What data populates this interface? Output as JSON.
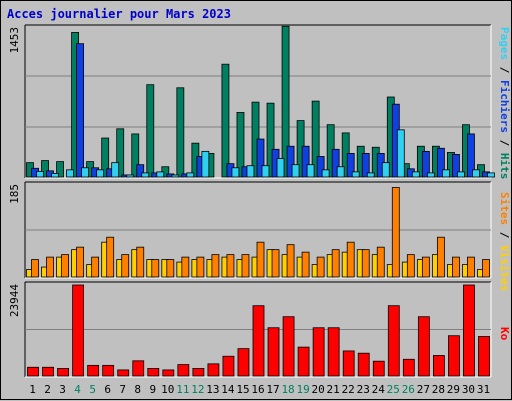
{
  "chart_data": [
    {
      "type": "bar",
      "title": "Acces journalier pour Mars 2023",
      "panel": "top",
      "categories": [
        "1",
        "2",
        "3",
        "4",
        "5",
        "6",
        "7",
        "8",
        "9",
        "10",
        "11",
        "12",
        "13",
        "14",
        "15",
        "16",
        "17",
        "18",
        "19",
        "20",
        "21",
        "22",
        "23",
        "24",
        "25",
        "26",
        "27",
        "28",
        "29",
        "30",
        "31"
      ],
      "ylabel_tick": "1453",
      "ymax": 1453,
      "series": [
        {
          "name": "Hits",
          "color": "#008060",
          "values": [
            140,
            160,
            150,
            1410,
            150,
            380,
            470,
            420,
            900,
            100,
            870,
            330,
            230,
            1100,
            630,
            730,
            720,
            1470,
            550,
            740,
            510,
            430,
            300,
            290,
            780,
            130,
            300,
            300,
            240,
            510,
            120
          ]
        },
        {
          "name": "Fichiers",
          "color": "#1040e0",
          "values": [
            85,
            60,
            0,
            1300,
            90,
            80,
            20,
            120,
            40,
            30,
            30,
            200,
            0,
            130,
            100,
            370,
            270,
            300,
            300,
            200,
            270,
            230,
            230,
            230,
            710,
            80,
            250,
            280,
            220,
            420,
            50
          ]
        },
        {
          "name": "Pages",
          "color": "#30d0f0",
          "values": [
            55,
            35,
            70,
            90,
            70,
            140,
            20,
            40,
            50,
            20,
            40,
            250,
            0,
            90,
            110,
            110,
            180,
            120,
            120,
            70,
            100,
            50,
            40,
            140,
            460,
            50,
            40,
            70,
            50,
            70,
            40
          ]
        }
      ],
      "right_labels": [
        "Pages",
        "Fichiers",
        "Hits"
      ],
      "right_label_colors": [
        "#30d0f0",
        "#1040e0",
        "#008060"
      ]
    },
    {
      "type": "bar",
      "panel": "middle",
      "categories": [
        "1",
        "2",
        "3",
        "4",
        "5",
        "6",
        "7",
        "8",
        "9",
        "10",
        "11",
        "12",
        "13",
        "14",
        "15",
        "16",
        "17",
        "18",
        "19",
        "20",
        "21",
        "22",
        "23",
        "24",
        "25",
        "26",
        "27",
        "28",
        "29",
        "30",
        "31"
      ],
      "ylabel_tick": "185",
      "ymax": 185,
      "series": [
        {
          "name": "Visites",
          "color": "#ff8000",
          "values": [
            35,
            40,
            45,
            60,
            40,
            80,
            45,
            60,
            35,
            35,
            40,
            40,
            45,
            45,
            45,
            70,
            55,
            65,
            50,
            40,
            55,
            70,
            55,
            60,
            180,
            45,
            40,
            80,
            40,
            40,
            35
          ]
        },
        {
          "name": "Sites",
          "color": "#ffd000",
          "values": [
            15,
            20,
            40,
            55,
            25,
            70,
            35,
            55,
            35,
            35,
            30,
            35,
            35,
            40,
            35,
            40,
            55,
            45,
            40,
            25,
            45,
            50,
            55,
            45,
            25,
            30,
            35,
            45,
            25,
            25,
            15
          ]
        }
      ],
      "right_labels": [
        "Sites",
        "Visites"
      ],
      "right_label_colors": [
        "#ff8000",
        "#ffd000"
      ]
    },
    {
      "type": "bar",
      "panel": "bottom",
      "categories": [
        "1",
        "2",
        "3",
        "4",
        "5",
        "6",
        "7",
        "8",
        "9",
        "10",
        "11",
        "12",
        "13",
        "14",
        "15",
        "16",
        "17",
        "18",
        "19",
        "20",
        "21",
        "22",
        "23",
        "24",
        "25",
        "26",
        "27",
        "28",
        "29",
        "30",
        "31"
      ],
      "ylabel_tick": "23944",
      "ymax": 23944,
      "series": [
        {
          "name": "Ko",
          "color": "#ff0000",
          "values": [
            2300,
            2300,
            2000,
            24500,
            2800,
            2800,
            1600,
            4000,
            2000,
            1600,
            3000,
            2000,
            3200,
            5200,
            7200,
            18500,
            12700,
            15600,
            7600,
            12700,
            12700,
            6600,
            6000,
            3900,
            18500,
            4400,
            15600,
            5400,
            10600,
            26500,
            10400
          ]
        }
      ],
      "right_labels": [
        "Ko"
      ],
      "right_label_colors": [
        "#ff0000"
      ]
    }
  ],
  "x_axis": {
    "labels": [
      "1",
      "2",
      "3",
      "4",
      "5",
      "6",
      "7",
      "8",
      "9",
      "10",
      "11",
      "12",
      "13",
      "14",
      "15",
      "16",
      "17",
      "18",
      "19",
      "20",
      "21",
      "22",
      "23",
      "24",
      "25",
      "26",
      "27",
      "28",
      "29",
      "30",
      "31"
    ],
    "weekend_days": [
      "4",
      "5",
      "11",
      "12",
      "18",
      "19",
      "25",
      "26"
    ],
    "weekday_color": "#000000",
    "weekend_color": "#008060"
  }
}
